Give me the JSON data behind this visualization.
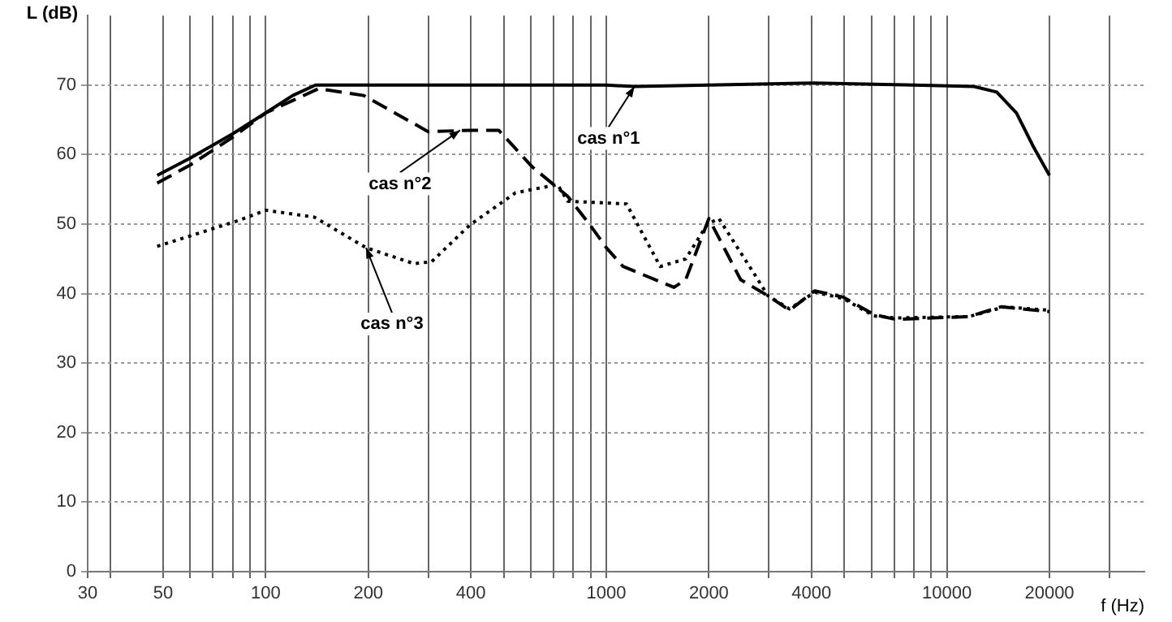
{
  "chart_data": {
    "type": "line",
    "xlabel": "f (Hz)",
    "ylabel": "L (dB)",
    "log": "x",
    "grid": true,
    "marker": "none",
    "legend": false,
    "xlim": [
      30,
      38000
    ],
    "ylim": [
      0,
      80
    ],
    "xticks": [
      30,
      {
        "value": 35,
        "label": null
      },
      50,
      {
        "value": 60,
        "label": null
      },
      {
        "value": 70,
        "label": null
      },
      {
        "value": 80,
        "label": null
      },
      {
        "value": 90,
        "label": null
      },
      100,
      200,
      {
        "value": 300,
        "label": null
      },
      400,
      {
        "value": 500,
        "label": null
      },
      {
        "value": 600,
        "label": null
      },
      {
        "value": 700,
        "label": null
      },
      {
        "value": 800,
        "label": null
      },
      {
        "value": 900,
        "label": null
      },
      1000,
      2000,
      {
        "value": 3000,
        "label": null
      },
      4000,
      {
        "value": 5000,
        "label": null
      },
      {
        "value": 6000,
        "label": null
      },
      {
        "value": 7000,
        "label": null
      },
      {
        "value": 8000,
        "label": null
      },
      {
        "value": 9000,
        "label": null
      },
      10000,
      20000,
      {
        "value": 30000,
        "label": null
      }
    ],
    "yticks": [
      0,
      10,
      20,
      30,
      40,
      50,
      60,
      70
    ],
    "series": [
      {
        "color": "#000000",
        "line_style": "solid",
        "x": [
          48,
          60,
          80,
          100,
          120,
          140,
          500,
          1000,
          1210,
          2000,
          4000,
          8000,
          12000,
          14000,
          16000,
          18000,
          20000
        ],
        "values": [
          57,
          59.5,
          63,
          66,
          68.5,
          70,
          70,
          70,
          69.8,
          70,
          70.3,
          70,
          69.8,
          69,
          66,
          61,
          57
        ]
      },
      {
        "color": "#000000",
        "line_style": "dashed",
        "x": [
          48,
          60,
          80,
          100,
          143,
          194,
          300,
          400,
          483,
          607,
          770,
          892,
          1000,
          1120,
          1580,
          1710,
          2000,
          2480,
          2980,
          3450,
          4090,
          4960,
          6100,
          7060,
          11600,
          14400,
          20000
        ],
        "values": [
          55.9,
          58.5,
          62.5,
          66,
          69.5,
          68.5,
          63.3,
          63.5,
          63.5,
          58.2,
          54,
          50,
          46.6,
          43.9,
          40.9,
          42,
          50.8,
          42,
          39.7,
          37.6,
          40.4,
          39.5,
          37,
          36.3,
          36.7,
          38.1,
          37.4
        ]
      },
      {
        "color": "#000000",
        "line_style": "dotted",
        "x": [
          48,
          83,
          100,
          139,
          197,
          273,
          307,
          398,
          541,
          719,
          770,
          1146,
          1440,
          1710,
          1980,
          2140,
          2690,
          2980,
          3450,
          4090,
          4960,
          6100,
          7060,
          11600,
          14800,
          20000
        ],
        "values": [
          46.8,
          50.5,
          52,
          51,
          46.6,
          44.3,
          44.6,
          49.9,
          54.5,
          55.7,
          53.3,
          52.9,
          43.9,
          45,
          50,
          50.8,
          43.2,
          39.7,
          37.8,
          40.2,
          39.3,
          36.8,
          36.5,
          36.7,
          38.1,
          37.6
        ]
      }
    ],
    "annotations": [
      {
        "text": "cas n°1",
        "x": 1210,
        "y": 69.8
      },
      {
        "text": "cas n°2",
        "x": 372,
        "y": 63.5
      },
      {
        "text": "cas n°3",
        "x": 197,
        "y": 46.6
      }
    ]
  }
}
